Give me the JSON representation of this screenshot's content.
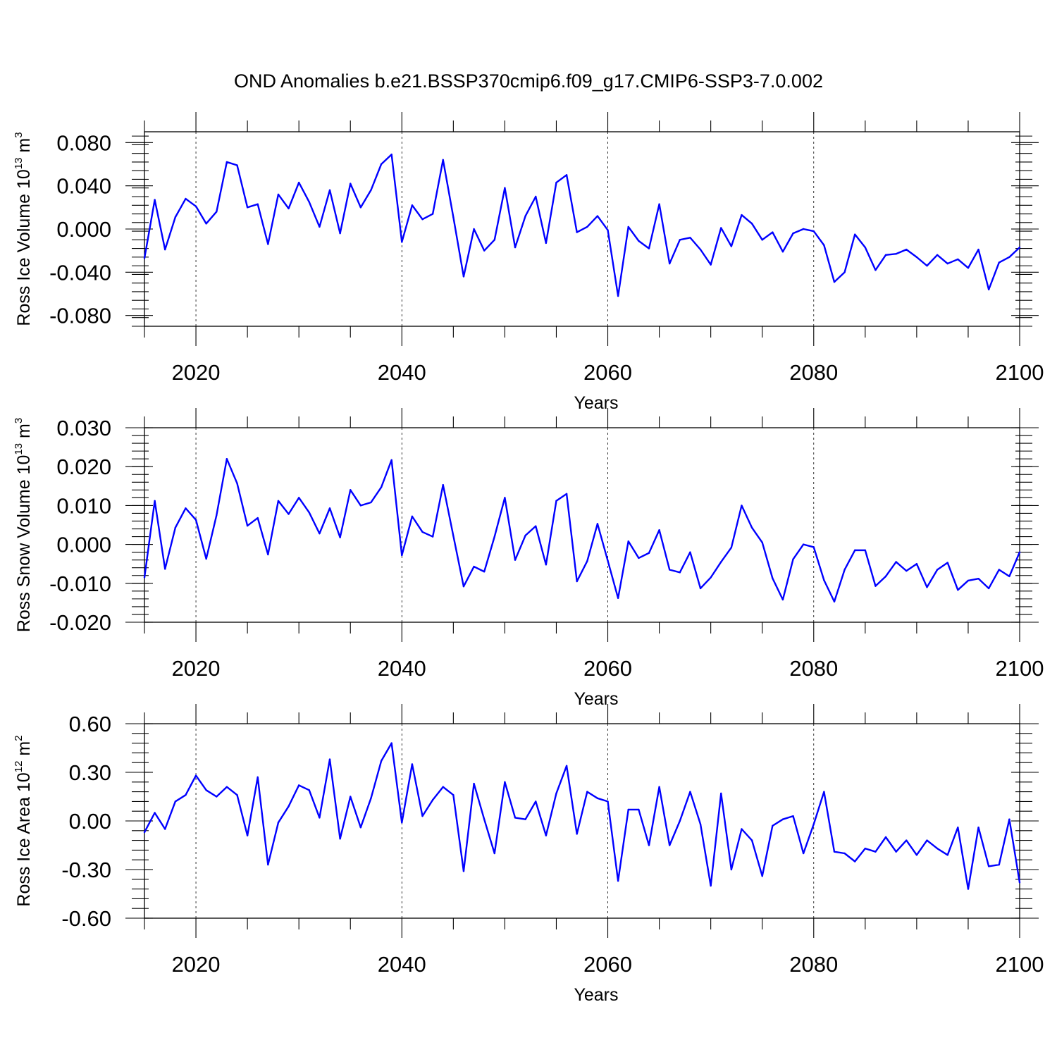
{
  "figure_title": "OND Anomalies b.e21.BSSP370cmip6.f09_g17.CMIP6-SSP3-7.0.002",
  "colors": {
    "line": "#0000ff",
    "axis": "#000000"
  },
  "chart_data": [
    {
      "type": "line",
      "xlabel": "Years",
      "ylabel_prefix": "Ross Ice Volume 10",
      "ylabel_exp": "13",
      "ylabel_unit": " m",
      "ylabel_unit_exp": "3",
      "xlim": [
        2015,
        2100
      ],
      "ylim": [
        -0.09,
        0.09
      ],
      "yticks": [
        -0.08,
        -0.04,
        0.0,
        0.04,
        0.08
      ],
      "ytick_labels": [
        "-0.080",
        "-0.040",
        "0.000",
        "0.040",
        "0.080"
      ],
      "xticks": [
        2020,
        2040,
        2060,
        2080,
        2100
      ],
      "xtick_labels": [
        "2020",
        "2040",
        "2060",
        "2080",
        "2100"
      ],
      "vgrid": [
        2020,
        2040,
        2060,
        2080
      ],
      "x_start": 2015,
      "values": [
        -0.027,
        0.027,
        -0.019,
        0.011,
        0.028,
        0.021,
        0.005,
        0.016,
        0.062,
        0.059,
        0.02,
        0.023,
        -0.014,
        0.032,
        0.019,
        0.043,
        0.025,
        0.002,
        0.036,
        -0.004,
        0.042,
        0.02,
        0.036,
        0.06,
        0.069,
        -0.012,
        0.022,
        0.009,
        0.014,
        0.064,
        0.011,
        -0.044,
        0.0,
        -0.02,
        -0.01,
        0.038,
        -0.017,
        0.012,
        0.03,
        -0.013,
        0.043,
        0.05,
        -0.003,
        0.002,
        0.012,
        -0.001,
        -0.062,
        0.002,
        -0.011,
        -0.018,
        0.023,
        -0.032,
        -0.01,
        -0.008,
        -0.019,
        -0.033,
        0.001,
        -0.016,
        0.013,
        0.005,
        -0.01,
        -0.003,
        -0.021,
        -0.004,
        0.0,
        -0.002,
        -0.015,
        -0.049,
        -0.04,
        -0.005,
        -0.017,
        -0.038,
        -0.024,
        -0.023,
        -0.019,
        -0.026,
        -0.034,
        -0.024,
        -0.032,
        -0.028,
        -0.036,
        -0.019,
        -0.056,
        -0.031,
        -0.026,
        -0.017
      ]
    },
    {
      "type": "line",
      "xlabel": "Years",
      "ylabel_prefix": "Ross Snow Volume 10",
      "ylabel_exp": "13",
      "ylabel_unit": " m",
      "ylabel_unit_exp": "3",
      "xlim": [
        2015,
        2100
      ],
      "ylim": [
        -0.02,
        0.03
      ],
      "yticks": [
        -0.02,
        -0.01,
        0.0,
        0.01,
        0.02,
        0.03
      ],
      "ytick_labels": [
        "-0.020",
        "-0.010",
        "0.000",
        "0.010",
        "0.020",
        "0.030"
      ],
      "xticks": [
        2020,
        2040,
        2060,
        2080,
        2100
      ],
      "xtick_labels": [
        "2020",
        "2040",
        "2060",
        "2080",
        "2100"
      ],
      "vgrid": [
        2020,
        2040,
        2060,
        2080
      ],
      "x_start": 2015,
      "values": [
        -0.0085,
        0.0112,
        -0.0063,
        0.0043,
        0.0093,
        0.0063,
        -0.0037,
        0.0075,
        0.022,
        0.0157,
        0.0048,
        0.0068,
        -0.0026,
        0.0112,
        0.0078,
        0.012,
        0.0082,
        0.0028,
        0.0093,
        0.0018,
        0.014,
        0.01,
        0.0108,
        0.0147,
        0.0217,
        -0.0028,
        0.0072,
        0.0032,
        0.002,
        0.0153,
        0.0022,
        -0.0108,
        -0.0057,
        -0.007,
        0.002,
        0.012,
        -0.004,
        0.0023,
        0.0047,
        -0.0052,
        0.0112,
        0.013,
        -0.0095,
        -0.0043,
        0.0053,
        -0.0042,
        -0.0138,
        0.0008,
        -0.0035,
        -0.0022,
        0.0037,
        -0.0065,
        -0.0072,
        -0.002,
        -0.0113,
        -0.0085,
        -0.0045,
        -0.0008,
        0.01,
        0.0043,
        0.0005,
        -0.0087,
        -0.0142,
        -0.0038,
        0.0,
        -0.0007,
        -0.0092,
        -0.0147,
        -0.0065,
        -0.0015,
        -0.0015,
        -0.0107,
        -0.0082,
        -0.0045,
        -0.0068,
        -0.005,
        -0.011,
        -0.0065,
        -0.0047,
        -0.0117,
        -0.0093,
        -0.0088,
        -0.0113,
        -0.0065,
        -0.0082,
        -0.002
      ]
    },
    {
      "type": "line",
      "xlabel": "Years",
      "ylabel_prefix": "Ross Ice Area 10",
      "ylabel_exp": "12",
      "ylabel_unit": " m",
      "ylabel_unit_exp": "2",
      "xlim": [
        2015,
        2100
      ],
      "ylim": [
        -0.6,
        0.6
      ],
      "yticks": [
        -0.6,
        -0.3,
        0.0,
        0.3,
        0.6
      ],
      "ytick_labels": [
        "-0.60",
        "-0.30",
        "0.00",
        "0.30",
        "0.60"
      ],
      "xticks": [
        2020,
        2040,
        2060,
        2080,
        2100
      ],
      "xtick_labels": [
        "2020",
        "2040",
        "2060",
        "2080",
        "2100"
      ],
      "vgrid": [
        2020,
        2040,
        2060,
        2080
      ],
      "x_start": 2015,
      "values": [
        -0.07,
        0.05,
        -0.05,
        0.12,
        0.16,
        0.28,
        0.19,
        0.15,
        0.21,
        0.16,
        -0.09,
        0.27,
        -0.27,
        -0.01,
        0.09,
        0.22,
        0.19,
        0.02,
        0.38,
        -0.11,
        0.15,
        -0.04,
        0.14,
        0.37,
        0.48,
        -0.01,
        0.35,
        0.03,
        0.13,
        0.21,
        0.16,
        -0.31,
        0.23,
        0.01,
        -0.2,
        0.24,
        0.02,
        0.01,
        0.12,
        -0.09,
        0.17,
        0.34,
        -0.08,
        0.18,
        0.14,
        0.12,
        -0.37,
        0.07,
        0.07,
        -0.15,
        0.21,
        -0.15,
        0.0,
        0.18,
        -0.02,
        -0.4,
        0.17,
        -0.3,
        -0.05,
        -0.12,
        -0.34,
        -0.03,
        0.01,
        0.03,
        -0.2,
        -0.02,
        0.18,
        -0.19,
        -0.2,
        -0.25,
        -0.17,
        -0.19,
        -0.1,
        -0.19,
        -0.12,
        -0.21,
        -0.12,
        -0.17,
        -0.21,
        -0.04,
        -0.42,
        -0.04,
        -0.28,
        -0.27,
        0.01,
        -0.38
      ]
    }
  ]
}
